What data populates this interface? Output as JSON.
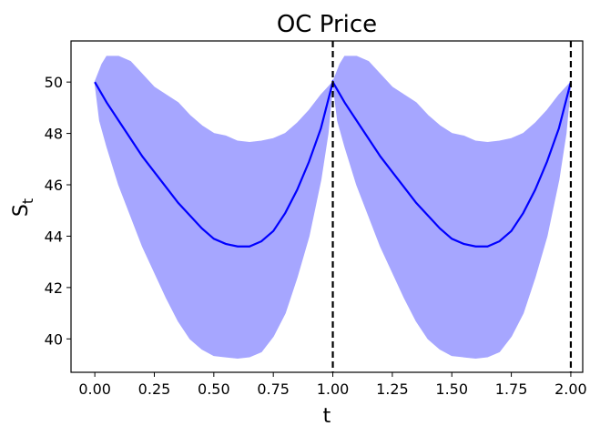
{
  "chart_data": {
    "type": "area",
    "title": "OC Price",
    "xlabel": "t",
    "ylabel_main": "S",
    "ylabel_sub": "t",
    "xlim": [
      -0.1,
      2.05
    ],
    "ylim": [
      38.7,
      51.6
    ],
    "xticks": [
      0.0,
      0.25,
      0.5,
      0.75,
      1.0,
      1.25,
      1.5,
      1.75,
      2.0
    ],
    "xtick_labels": [
      "0.00",
      "0.25",
      "0.50",
      "0.75",
      "1.00",
      "1.25",
      "1.50",
      "1.75",
      "2.00"
    ],
    "yticks": [
      40,
      42,
      44,
      46,
      48,
      50
    ],
    "ytick_labels": [
      "40",
      "42",
      "44",
      "46",
      "48",
      "50"
    ],
    "grid": false,
    "vlines": [
      1.0,
      2.0
    ],
    "colors": {
      "mean_line": "#0000ff",
      "band_fill": "#a6a6ff",
      "vline": "#000000"
    },
    "series": [
      {
        "kind": "mean",
        "x": [
          0.0,
          0.05,
          0.1,
          0.15,
          0.2,
          0.25,
          0.3,
          0.35,
          0.4,
          0.45,
          0.5,
          0.55,
          0.6,
          0.65,
          0.7,
          0.75,
          0.8,
          0.85,
          0.9,
          0.95,
          1.0,
          1.05,
          1.1,
          1.15,
          1.2,
          1.25,
          1.3,
          1.35,
          1.4,
          1.45,
          1.5,
          1.55,
          1.6,
          1.65,
          1.7,
          1.75,
          1.8,
          1.85,
          1.9,
          1.95,
          2.0
        ],
        "y": [
          50.0,
          49.2,
          48.5,
          47.8,
          47.1,
          46.5,
          45.9,
          45.3,
          44.8,
          44.3,
          43.9,
          43.7,
          43.6,
          43.6,
          43.8,
          44.2,
          44.9,
          45.8,
          46.9,
          48.2,
          50.0,
          49.2,
          48.5,
          47.8,
          47.1,
          46.5,
          45.9,
          45.3,
          44.8,
          44.3,
          43.9,
          43.7,
          43.6,
          43.6,
          43.8,
          44.2,
          44.9,
          45.8,
          46.9,
          48.2,
          50.0
        ]
      },
      {
        "kind": "upper",
        "x": [
          0.0,
          0.03,
          0.05,
          0.1,
          0.15,
          0.2,
          0.25,
          0.3,
          0.35,
          0.4,
          0.45,
          0.5,
          0.55,
          0.6,
          0.65,
          0.7,
          0.75,
          0.8,
          0.85,
          0.9,
          0.95,
          1.0,
          1.03,
          1.05,
          1.1,
          1.15,
          1.2,
          1.25,
          1.3,
          1.35,
          1.4,
          1.45,
          1.5,
          1.55,
          1.6,
          1.65,
          1.7,
          1.75,
          1.8,
          1.85,
          1.9,
          1.95,
          2.0
        ],
        "y": [
          50.0,
          50.7,
          51.0,
          51.0,
          50.8,
          50.3,
          49.8,
          49.5,
          49.2,
          48.7,
          48.3,
          48.0,
          47.9,
          47.7,
          47.65,
          47.7,
          47.8,
          48.0,
          48.4,
          48.9,
          49.5,
          50.0,
          50.7,
          51.0,
          51.0,
          50.8,
          50.3,
          49.8,
          49.5,
          49.2,
          48.7,
          48.3,
          48.0,
          47.9,
          47.7,
          47.65,
          47.7,
          47.8,
          48.0,
          48.4,
          48.9,
          49.5,
          50.0
        ]
      },
      {
        "kind": "lower",
        "x": [
          0.0,
          0.02,
          0.05,
          0.1,
          0.15,
          0.2,
          0.25,
          0.3,
          0.35,
          0.4,
          0.45,
          0.5,
          0.55,
          0.6,
          0.65,
          0.7,
          0.75,
          0.8,
          0.85,
          0.9,
          0.95,
          0.98,
          1.0,
          1.02,
          1.05,
          1.1,
          1.15,
          1.2,
          1.25,
          1.3,
          1.35,
          1.4,
          1.45,
          1.5,
          1.55,
          1.6,
          1.65,
          1.7,
          1.75,
          1.8,
          1.85,
          1.9,
          1.95,
          1.98,
          2.0
        ],
        "y": [
          50.0,
          48.5,
          47.5,
          46.0,
          44.8,
          43.6,
          42.6,
          41.6,
          40.7,
          40.0,
          39.6,
          39.35,
          39.3,
          39.25,
          39.3,
          39.5,
          40.1,
          41.0,
          42.4,
          44.0,
          46.2,
          48.0,
          50.0,
          48.5,
          47.5,
          46.0,
          44.8,
          43.6,
          42.6,
          41.6,
          40.7,
          40.0,
          39.6,
          39.35,
          39.3,
          39.25,
          39.3,
          39.5,
          40.1,
          41.0,
          42.4,
          44.0,
          46.2,
          48.0,
          50.0
        ]
      }
    ]
  }
}
